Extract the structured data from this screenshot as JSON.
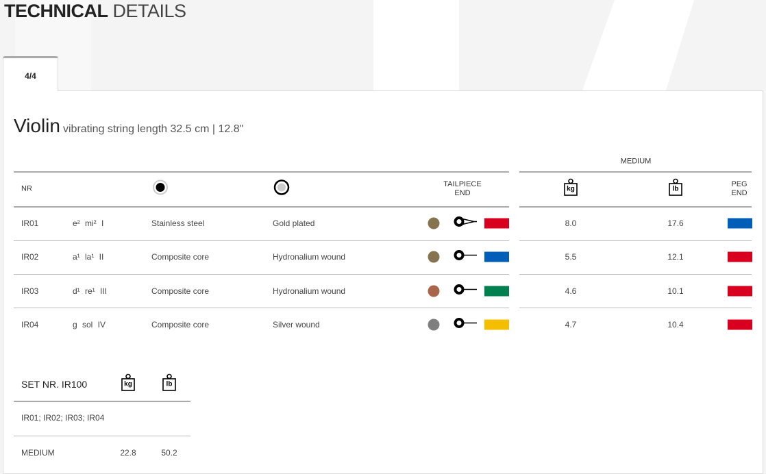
{
  "heading": {
    "bold": "TECHNICAL",
    "light": "DETAILS"
  },
  "tab": {
    "label": "4/4"
  },
  "instrument": {
    "name": "Violin",
    "subtitle": "vibrating string length 32.5 cm | 12.8\""
  },
  "table": {
    "group_label": "MEDIUM",
    "headers": {
      "nr": "NR",
      "core_icon": "core-icon",
      "cover_icon": "cover-icon",
      "tailpiece": "TAILPIECE",
      "tailpiece2": "END",
      "kg": "kg",
      "lb": "lb",
      "peg": "PEG",
      "peg2": "END"
    },
    "rows": [
      {
        "nr": "IR01",
        "note": "e² mi² I",
        "core": "Stainless steel",
        "cover": "Gold plated",
        "dot": "#85744f",
        "end": "knot",
        "tail": "#d9001f",
        "kg": "8.0",
        "lb": "17.6",
        "peg": "#005eb8"
      },
      {
        "nr": "IR02",
        "note": "a¹ la¹ II",
        "core": "Composite core",
        "cover": "Hydronalium wound",
        "dot": "#85744f",
        "end": "ball",
        "tail": "#005eb8",
        "kg": "5.5",
        "lb": "12.1",
        "peg": "#d9001f"
      },
      {
        "nr": "IR03",
        "note": "d¹ re¹ III",
        "core": "Composite core",
        "cover": "Hydronalium wound",
        "dot": "#a8654a",
        "end": "ball",
        "tail": "#007f4f",
        "kg": "4.6",
        "lb": "10.1",
        "peg": "#d9001f"
      },
      {
        "nr": "IR04",
        "note": "g sol IV",
        "core": "Composite core",
        "cover": "Silver wound",
        "dot": "#7f7f7f",
        "end": "ball",
        "tail": "#f4bf00",
        "kg": "4.7",
        "lb": "10.4",
        "peg": "#d9001f"
      }
    ]
  },
  "set": {
    "title": "SET NR. IR100",
    "kg": "kg",
    "lb": "lb",
    "strings": "IR01; IR02; IR03; IR04",
    "tension": "MEDIUM",
    "kg_value": "22.8",
    "lb_value": "50.2"
  }
}
